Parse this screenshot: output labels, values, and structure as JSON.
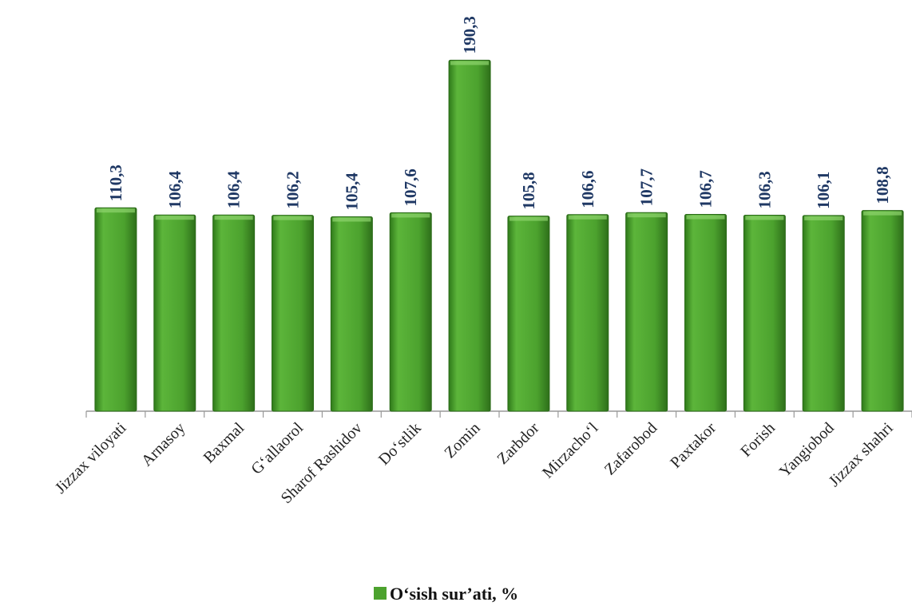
{
  "chart_data": {
    "type": "bar",
    "categories": [
      "Jizzax viloyati",
      "Arnasoy",
      "Baxmal",
      "G‘allaorol",
      "Sharof Rashidov",
      "Do‘stlik",
      "Zomin",
      "Zarbdor",
      "Mirzacho‘l",
      "Zafarobod",
      "Paxtakor",
      "Forish",
      "Yangiobod",
      "Jizzax shahri"
    ],
    "series": [
      {
        "name": "O‘sish sur’ati, %",
        "color": "#4ca22e",
        "values": [
          110.3,
          106.4,
          106.4,
          106.2,
          105.4,
          107.6,
          190.3,
          105.8,
          106.6,
          107.7,
          106.7,
          106.3,
          106.1,
          108.8
        ],
        "value_labels": [
          "110,3",
          "106,4",
          "106,4",
          "106,2",
          "105,4",
          "107,6",
          "190,3",
          "105,8",
          "106,6",
          "107,7",
          "106,7",
          "106,3",
          "106,1",
          "108,8"
        ]
      }
    ],
    "ylim": [
      0,
      200
    ],
    "legend": "bottom"
  }
}
